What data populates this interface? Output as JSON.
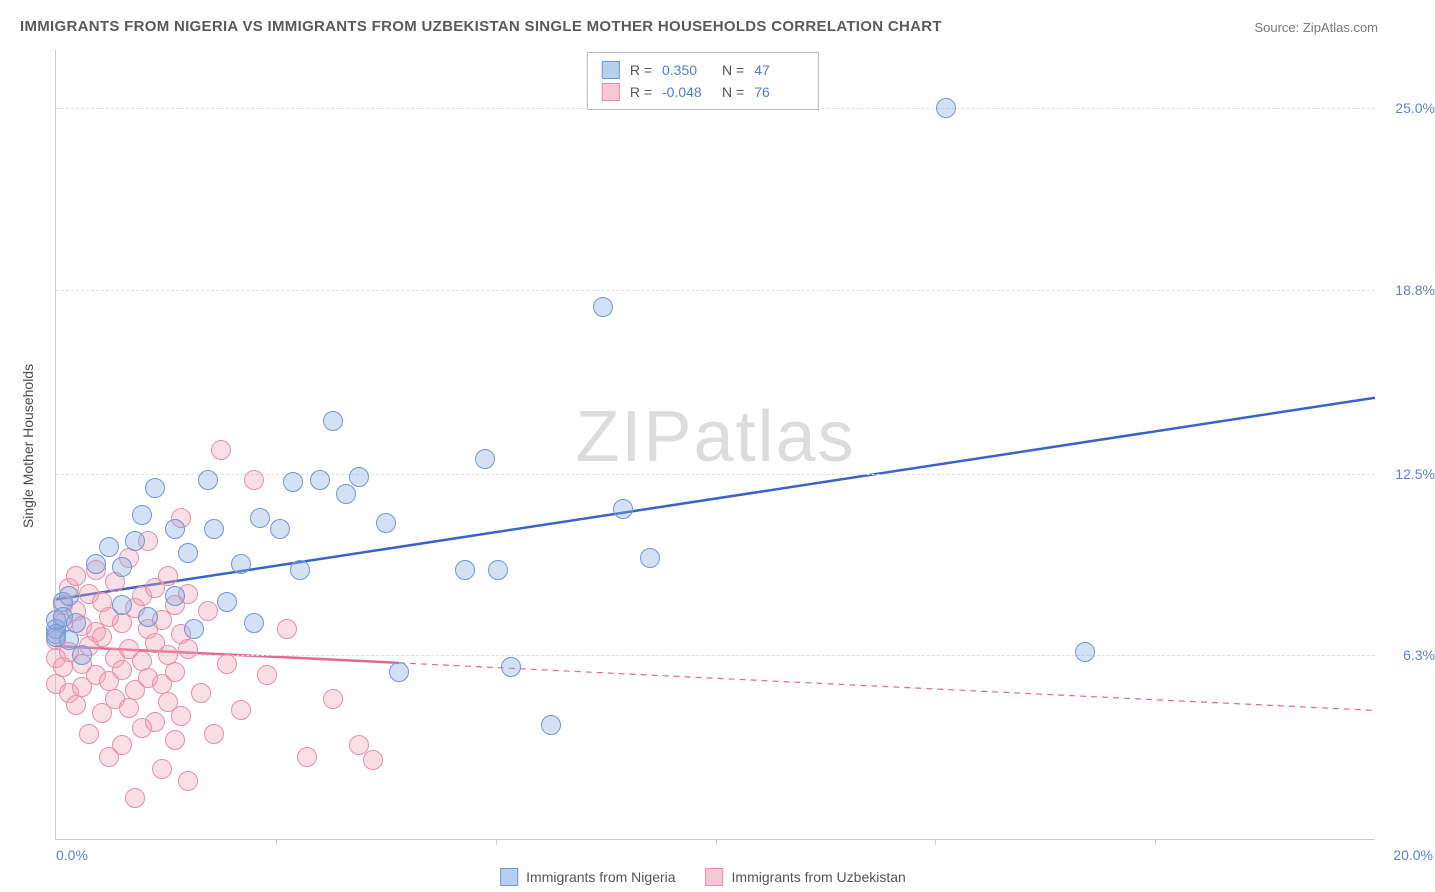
{
  "title": "IMMIGRANTS FROM NIGERIA VS IMMIGRANTS FROM UZBEKISTAN SINGLE MOTHER HOUSEHOLDS CORRELATION CHART",
  "source": "Source: ZipAtlas.com",
  "ylabel": "Single Mother Households",
  "watermark": "ZIPatlas",
  "chart": {
    "type": "scatter",
    "background_color": "#ffffff",
    "grid_color": "#e0e0e0",
    "axis_color": "#cccccc",
    "tick_label_color": "#5b7fd6",
    "xlim": [
      0,
      20
    ],
    "ylim": [
      0,
      27
    ],
    "xticks": [
      {
        "v": 0,
        "label": "0.0%"
      },
      {
        "v": 20,
        "label": "20.0%"
      }
    ],
    "xticks_minor": [
      3.33,
      6.67,
      10,
      13.33,
      16.67
    ],
    "yticks": [
      {
        "v": 6.3,
        "label": "6.3%"
      },
      {
        "v": 12.5,
        "label": "12.5%"
      },
      {
        "v": 18.8,
        "label": "18.8%"
      },
      {
        "v": 25.0,
        "label": "25.0%"
      }
    ],
    "marker_radius": 10,
    "marker_stroke_width": 1.5,
    "line_width": 2.5,
    "series": [
      {
        "id": "nigeria",
        "name": "Immigrants from Nigeria",
        "fill": "rgba(132,170,226,0.35)",
        "stroke": "#6f98d6",
        "line_color": "#3a63c7",
        "legend_fill": "#b7cff0",
        "legend_stroke": "#6f98d6",
        "R": "0.350",
        "N": "47",
        "trend": {
          "x1": 0,
          "y1": 8.2,
          "x2": 20,
          "y2": 15.1,
          "dashed": false,
          "dash_extent_x": 20
        },
        "points": [
          [
            0.0,
            7.2
          ],
          [
            0.0,
            7.0
          ],
          [
            0.0,
            6.9
          ],
          [
            0.0,
            7.5
          ],
          [
            0.1,
            8.1
          ],
          [
            0.1,
            7.6
          ],
          [
            0.2,
            8.3
          ],
          [
            0.2,
            6.8
          ],
          [
            0.3,
            7.4
          ],
          [
            0.4,
            6.3
          ],
          [
            0.6,
            9.4
          ],
          [
            0.8,
            10.0
          ],
          [
            1.0,
            8.0
          ],
          [
            1.0,
            9.3
          ],
          [
            1.2,
            10.2
          ],
          [
            1.3,
            11.1
          ],
          [
            1.4,
            7.6
          ],
          [
            1.5,
            12.0
          ],
          [
            1.8,
            10.6
          ],
          [
            1.8,
            8.3
          ],
          [
            2.0,
            9.8
          ],
          [
            2.1,
            7.2
          ],
          [
            2.3,
            12.3
          ],
          [
            2.4,
            10.6
          ],
          [
            2.6,
            8.1
          ],
          [
            2.8,
            9.4
          ],
          [
            3.0,
            7.4
          ],
          [
            3.1,
            11.0
          ],
          [
            3.4,
            10.6
          ],
          [
            3.6,
            12.2
          ],
          [
            3.7,
            9.2
          ],
          [
            4.0,
            12.3
          ],
          [
            4.2,
            14.3
          ],
          [
            4.4,
            11.8
          ],
          [
            4.6,
            12.4
          ],
          [
            5.0,
            10.8
          ],
          [
            5.2,
            5.7
          ],
          [
            6.2,
            9.2
          ],
          [
            6.5,
            13.0
          ],
          [
            6.7,
            9.2
          ],
          [
            6.9,
            5.9
          ],
          [
            7.5,
            3.9
          ],
          [
            8.3,
            18.2
          ],
          [
            8.6,
            11.3
          ],
          [
            9.0,
            9.6
          ],
          [
            13.5,
            25.0
          ],
          [
            15.6,
            6.4
          ]
        ]
      },
      {
        "id": "uzbekistan",
        "name": "Immigrants from Uzbekistan",
        "fill": "rgba(240,160,180,0.35)",
        "stroke": "#e690a8",
        "line_color": "#e06a92",
        "legend_fill": "#f6c8d5",
        "legend_stroke": "#e690a8",
        "R": "-0.048",
        "N": "76",
        "trend": {
          "x1": 0,
          "y1": 6.6,
          "x2": 20,
          "y2": 4.4,
          "dashed": true,
          "dash_extent_x": 5.2
        },
        "points": [
          [
            0.0,
            6.2
          ],
          [
            0.0,
            5.3
          ],
          [
            0.0,
            6.8
          ],
          [
            0.1,
            7.4
          ],
          [
            0.1,
            5.9
          ],
          [
            0.1,
            8.0
          ],
          [
            0.2,
            6.4
          ],
          [
            0.2,
            5.0
          ],
          [
            0.2,
            8.6
          ],
          [
            0.3,
            7.8
          ],
          [
            0.3,
            4.6
          ],
          [
            0.3,
            9.0
          ],
          [
            0.4,
            6.0
          ],
          [
            0.4,
            7.3
          ],
          [
            0.4,
            5.2
          ],
          [
            0.5,
            8.4
          ],
          [
            0.5,
            6.6
          ],
          [
            0.5,
            3.6
          ],
          [
            0.6,
            7.1
          ],
          [
            0.6,
            5.6
          ],
          [
            0.6,
            9.2
          ],
          [
            0.7,
            4.3
          ],
          [
            0.7,
            6.9
          ],
          [
            0.7,
            8.1
          ],
          [
            0.8,
            5.4
          ],
          [
            0.8,
            7.6
          ],
          [
            0.8,
            2.8
          ],
          [
            0.9,
            6.2
          ],
          [
            0.9,
            4.8
          ],
          [
            0.9,
            8.8
          ],
          [
            1.0,
            5.8
          ],
          [
            1.0,
            7.4
          ],
          [
            1.0,
            3.2
          ],
          [
            1.1,
            6.5
          ],
          [
            1.1,
            9.6
          ],
          [
            1.1,
            4.5
          ],
          [
            1.2,
            7.9
          ],
          [
            1.2,
            5.1
          ],
          [
            1.2,
            1.4
          ],
          [
            1.3,
            8.3
          ],
          [
            1.3,
            6.1
          ],
          [
            1.3,
            3.8
          ],
          [
            1.4,
            7.2
          ],
          [
            1.4,
            5.5
          ],
          [
            1.4,
            10.2
          ],
          [
            1.5,
            4.0
          ],
          [
            1.5,
            6.7
          ],
          [
            1.5,
            8.6
          ],
          [
            1.6,
            5.3
          ],
          [
            1.6,
            2.4
          ],
          [
            1.6,
            7.5
          ],
          [
            1.7,
            9.0
          ],
          [
            1.7,
            4.7
          ],
          [
            1.7,
            6.3
          ],
          [
            1.8,
            8.0
          ],
          [
            1.8,
            3.4
          ],
          [
            1.8,
            5.7
          ],
          [
            1.9,
            11.0
          ],
          [
            1.9,
            7.0
          ],
          [
            1.9,
            4.2
          ],
          [
            2.0,
            6.5
          ],
          [
            2.0,
            8.4
          ],
          [
            2.0,
            2.0
          ],
          [
            2.2,
            5.0
          ],
          [
            2.3,
            7.8
          ],
          [
            2.4,
            3.6
          ],
          [
            2.5,
            13.3
          ],
          [
            2.6,
            6.0
          ],
          [
            2.8,
            4.4
          ],
          [
            3.0,
            12.3
          ],
          [
            3.2,
            5.6
          ],
          [
            3.5,
            7.2
          ],
          [
            3.8,
            2.8
          ],
          [
            4.2,
            4.8
          ],
          [
            4.6,
            3.2
          ],
          [
            4.8,
            2.7
          ]
        ]
      }
    ]
  },
  "legend_top_labels": {
    "R": "R =",
    "N": "N ="
  }
}
